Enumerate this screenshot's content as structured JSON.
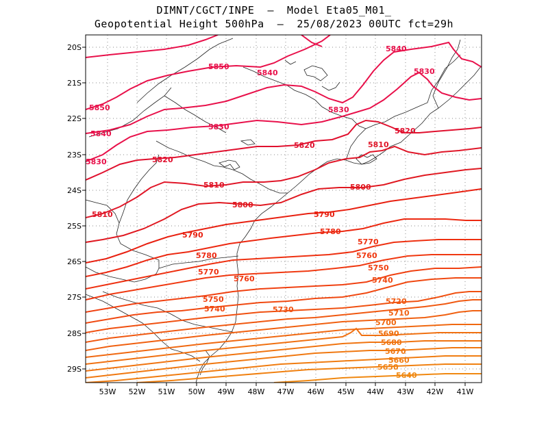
{
  "title": {
    "line1": "DIMNT/CGCT/INPE  –  Model Eta05_M01_",
    "line2": "Geopotential Height 500hPa  –  25/08/2023 00UTC fct=29h"
  },
  "axes": {
    "lon_labels": [
      "53W",
      "52W",
      "51W",
      "50W",
      "49W",
      "48W",
      "47W",
      "46W",
      "45W",
      "44W",
      "43W",
      "42W",
      "41W"
    ],
    "lat_labels": [
      "20S",
      "21S",
      "22S",
      "23S",
      "24S",
      "25S",
      "26S",
      "27S",
      "28S",
      "29S"
    ]
  },
  "contours": [
    {
      "value": 5850,
      "color": "#e8104a",
      "label": "5850"
    },
    {
      "value": 5840,
      "color": "#e8104a",
      "label": "5840"
    },
    {
      "value": 5830,
      "color": "#e8104a",
      "label": "5830"
    },
    {
      "value": 5820,
      "color": "#e0102e",
      "label": "5820"
    },
    {
      "value": 5810,
      "color": "#e01628",
      "label": "5810"
    },
    {
      "value": 5800,
      "color": "#e01820",
      "label": "5800"
    },
    {
      "value": 5790,
      "color": "#e82010",
      "label": "5790"
    },
    {
      "value": 5780,
      "color": "#ec2810",
      "label": "5780"
    },
    {
      "value": 5770,
      "color": "#ee3010",
      "label": "5770"
    },
    {
      "value": 5760,
      "color": "#f03810",
      "label": "5760"
    },
    {
      "value": 5750,
      "color": "#f04010",
      "label": "5750"
    },
    {
      "value": 5740,
      "color": "#f04810",
      "label": "5740"
    },
    {
      "value": 5730,
      "color": "#f05010",
      "label": "5730"
    },
    {
      "value": 5720,
      "color": "#f05810",
      "label": "5720"
    },
    {
      "value": 5710,
      "color": "#f06010",
      "label": "5710"
    },
    {
      "value": 5700,
      "color": "#f06810",
      "label": "5700"
    },
    {
      "value": 5690,
      "color": "#f07010",
      "label": "5690"
    },
    {
      "value": 5680,
      "color": "#f07410",
      "label": "5680"
    },
    {
      "value": 5670,
      "color": "#f07810",
      "label": "5670"
    },
    {
      "value": 5660,
      "color": "#f07c10",
      "label": "5660"
    },
    {
      "value": 5650,
      "color": "#f08010",
      "label": "5650"
    },
    {
      "value": 5640,
      "color": "#f08810",
      "label": "5640"
    }
  ]
}
